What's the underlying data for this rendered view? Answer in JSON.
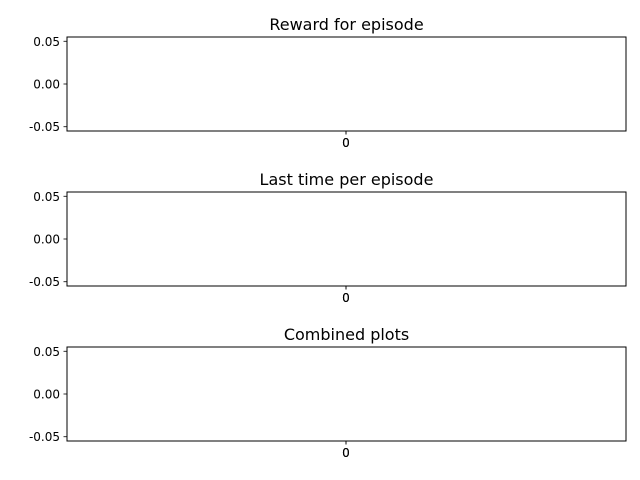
{
  "chart_data": [
    {
      "type": "line",
      "title": "Reward for episode",
      "x": [],
      "y": [],
      "xticks": [
        "0",
        "0"
      ],
      "yticks": [
        "0.05",
        "0.00",
        "-0.05"
      ],
      "ylim": [
        -0.055,
        0.055
      ],
      "grid": false
    },
    {
      "type": "line",
      "title": "Last time per episode",
      "x": [],
      "y": [],
      "xticks": [
        "0",
        "0"
      ],
      "yticks": [
        "0.05",
        "0.00",
        "-0.05"
      ],
      "ylim": [
        -0.055,
        0.055
      ],
      "grid": false
    },
    {
      "type": "line",
      "title": "Combined plots",
      "x": [],
      "y": [],
      "xticks": [
        "0",
        "0"
      ],
      "yticks": [
        "0.05",
        "0.00",
        "-0.05"
      ],
      "ylim": [
        -0.055,
        0.055
      ],
      "grid": false
    }
  ]
}
